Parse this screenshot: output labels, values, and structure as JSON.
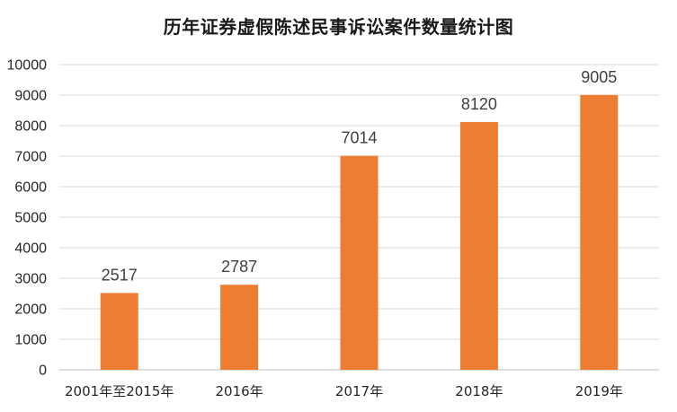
{
  "chart_data": {
    "type": "bar",
    "title": "历年证券虚假陈述民事诉讼案件数量统计图",
    "xlabel": "",
    "ylabel": "",
    "categories": [
      "2001年至2015年",
      "2016年",
      "2017年",
      "2018年",
      "2019年"
    ],
    "values": [
      2517,
      2787,
      7014,
      8120,
      9005
    ],
    "data_labels": [
      "2517",
      "2787",
      "7014",
      "8120",
      "9005"
    ],
    "ylim": [
      0,
      10000
    ],
    "yticks": [
      0,
      1000,
      2000,
      3000,
      4000,
      5000,
      6000,
      7000,
      8000,
      9000,
      10000
    ],
    "ytick_labels": [
      "0",
      "1000",
      "2000",
      "3000",
      "4000",
      "5000",
      "6000",
      "7000",
      "8000",
      "9000",
      "10000"
    ],
    "grid": true,
    "legend": "none",
    "colors": {
      "bar": "#ED7D31",
      "grid": "#D9D9D9",
      "axis": "#BFBFBF"
    }
  }
}
